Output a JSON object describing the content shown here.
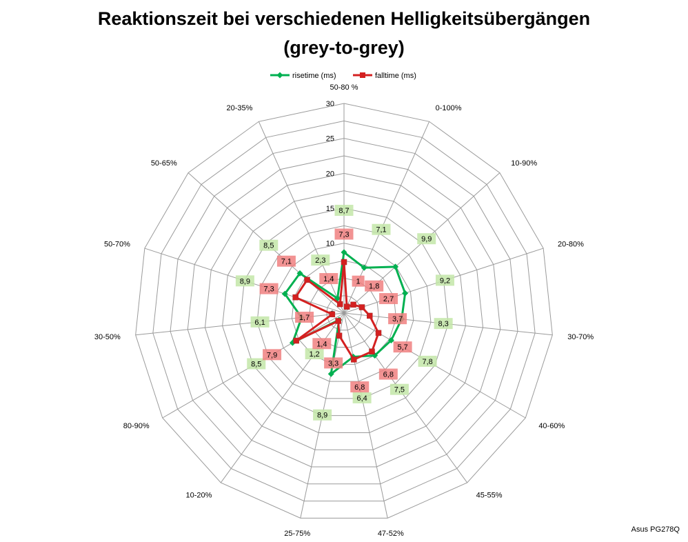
{
  "chart_data": {
    "type": "radar",
    "title": "Reaktionszeit bei verschiedenen Helligkeitsübergängen",
    "subtitle": "(grey-to-grey)",
    "categories": [
      "50-80 %",
      "0-100%",
      "10-90%",
      "20-80%",
      "30-70%",
      "40-60%",
      "45-55%",
      "47-52%",
      "25-75%",
      "10-20%",
      "80-90%",
      "30-50%",
      "50-70%",
      "50-65%",
      "20-35%"
    ],
    "rlim": [
      0,
      30
    ],
    "ticks": [
      "0",
      "5",
      "10",
      "15",
      "20",
      "25",
      "30"
    ],
    "grid": true,
    "legend": "top",
    "series": [
      {
        "name": "risetime (ms)",
        "color": "#00B050",
        "label_bg": "#C3E6A8",
        "values": [
          8.7,
          7.1,
          9.9,
          9.2,
          8.3,
          7.8,
          7.5,
          6.4,
          8.9,
          1.2,
          8.5,
          6.1,
          8.9,
          8.5,
          2.3
        ],
        "labels": [
          "8,7",
          "7,1",
          "9,9",
          "9,2",
          "8,3",
          "7,8",
          "7,5",
          "6,4",
          "8,9",
          "1,2",
          "8,5",
          "6,1",
          "8,9",
          "8,5",
          "2,3"
        ]
      },
      {
        "name": "falltime (ms)",
        "color": "#D42020",
        "label_bg": "#F08080",
        "values": [
          7.3,
          1.0,
          1.8,
          2.7,
          3.7,
          5.7,
          6.8,
          6.8,
          3.3,
          1.4,
          7.9,
          1.7,
          7.3,
          7.1,
          1.4
        ],
        "labels": [
          "7,3",
          "1",
          "1,8",
          "2,7",
          "3,7",
          "5,7",
          "6,8",
          "6,8",
          "3,3",
          "1,4",
          "7,9",
          "1,7",
          "7,3",
          "7,1",
          "1,4"
        ]
      }
    ]
  },
  "credit": "Asus PG278Q"
}
